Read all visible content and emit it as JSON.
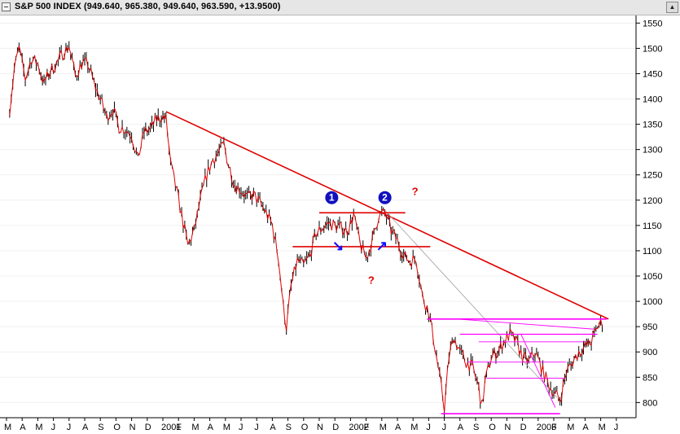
{
  "window": {
    "title": "S&P 500 INDEX (949.640, 965.380, 949.640, 963.590, +13.9500)",
    "scroll_glyph": "▲"
  },
  "chart_data": {
    "type": "candlestick",
    "title": "S&P 500 INDEX (949.640, 965.380, 949.640, 963.590, +13.9500)",
    "ylim": [
      770,
      1565
    ],
    "y_ticks": [
      800,
      850,
      900,
      950,
      1000,
      1050,
      1100,
      1150,
      1200,
      1250,
      1300,
      1350,
      1400,
      1450,
      1500,
      1550
    ],
    "x_ticks": [
      "M",
      "A",
      "M",
      "J",
      "J",
      "A",
      "S",
      "O",
      "N",
      "D",
      "2001",
      "F",
      "M",
      "A",
      "M",
      "J",
      "J",
      "A",
      "S",
      "O",
      "N",
      "D",
      "2002",
      "F",
      "M",
      "A",
      "M",
      "J",
      "J",
      "A",
      "S",
      "O",
      "N",
      "D",
      "2003",
      "F",
      "M",
      "A",
      "M",
      "J"
    ],
    "price_path": [
      [
        0.2,
        1380
      ],
      [
        0.5,
        1460
      ],
      [
        0.8,
        1500
      ],
      [
        1.2,
        1440
      ],
      [
        1.6,
        1480
      ],
      [
        2.0,
        1470
      ],
      [
        2.4,
        1430
      ],
      [
        2.8,
        1455
      ],
      [
        3.2,
        1470
      ],
      [
        3.6,
        1490
      ],
      [
        4.0,
        1505
      ],
      [
        4.4,
        1445
      ],
      [
        4.8,
        1470
      ],
      [
        5.2,
        1470
      ],
      [
        5.6,
        1430
      ],
      [
        6.0,
        1400
      ],
      [
        6.4,
        1365
      ],
      [
        6.8,
        1380
      ],
      [
        7.2,
        1345
      ],
      [
        7.6,
        1340
      ],
      [
        8.0,
        1330
      ],
      [
        8.4,
        1280
      ],
      [
        8.8,
        1335
      ],
      [
        9.2,
        1340
      ],
      [
        9.6,
        1360
      ],
      [
        9.9,
        1365
      ],
      [
        10.2,
        1360
      ],
      [
        10.5,
        1270
      ],
      [
        10.8,
        1230
      ],
      [
        11.2,
        1170
      ],
      [
        11.6,
        1110
      ],
      [
        12.0,
        1140
      ],
      [
        12.4,
        1200
      ],
      [
        12.8,
        1250
      ],
      [
        13.2,
        1280
      ],
      [
        13.6,
        1295
      ],
      [
        13.9,
        1310
      ],
      [
        14.2,
        1270
      ],
      [
        14.6,
        1230
      ],
      [
        15.0,
        1220
      ],
      [
        15.4,
        1205
      ],
      [
        15.8,
        1210
      ],
      [
        16.2,
        1195
      ],
      [
        16.6,
        1175
      ],
      [
        17.0,
        1150
      ],
      [
        17.4,
        1085
      ],
      [
        17.7,
        990
      ],
      [
        17.9,
        950
      ],
      [
        18.2,
        1030
      ],
      [
        18.6,
        1080
      ],
      [
        19.0,
        1070
      ],
      [
        19.4,
        1090
      ],
      [
        19.8,
        1135
      ],
      [
        20.2,
        1145
      ],
      [
        20.6,
        1155
      ],
      [
        21.0,
        1150
      ],
      [
        21.4,
        1145
      ],
      [
        21.8,
        1140
      ],
      [
        22.2,
        1170
      ],
      [
        22.6,
        1115
      ],
      [
        23.0,
        1085
      ],
      [
        23.4,
        1120
      ],
      [
        23.8,
        1170
      ],
      [
        24.2,
        1175
      ],
      [
        24.6,
        1140
      ],
      [
        25.0,
        1120
      ],
      [
        25.4,
        1090
      ],
      [
        25.8,
        1080
      ],
      [
        26.2,
        1085
      ],
      [
        26.6,
        1010
      ],
      [
        27.0,
        980
      ],
      [
        27.4,
        910
      ],
      [
        27.8,
        830
      ],
      [
        28.0,
        790
      ],
      [
        28.3,
        890
      ],
      [
        28.6,
        930
      ],
      [
        29.0,
        900
      ],
      [
        29.4,
        880
      ],
      [
        29.8,
        870
      ],
      [
        30.2,
        830
      ],
      [
        30.4,
        790
      ],
      [
        30.6,
        840
      ],
      [
        31.0,
        890
      ],
      [
        31.4,
        900
      ],
      [
        31.8,
        920
      ],
      [
        32.2,
        935
      ],
      [
        32.6,
        920
      ],
      [
        33.0,
        890
      ],
      [
        33.4,
        880
      ],
      [
        33.8,
        900
      ],
      [
        34.2,
        870
      ],
      [
        34.6,
        840
      ],
      [
        35.0,
        820
      ],
      [
        35.4,
        805
      ],
      [
        35.8,
        860
      ],
      [
        36.2,
        880
      ],
      [
        36.6,
        900
      ],
      [
        37.0,
        910
      ],
      [
        37.4,
        920
      ],
      [
        37.8,
        950
      ],
      [
        38.2,
        963.59
      ]
    ],
    "trendlines": {
      "major_down": [
        [
          10.2,
          1375
        ],
        [
          38.5,
          965
        ]
      ],
      "secondary_down": [
        [
          24.2,
          1180
        ],
        [
          35.2,
          810
        ]
      ],
      "double_top_resistance": [
        [
          20.0,
          1175
        ],
        [
          25.5,
          1175
        ]
      ],
      "neckline_support": [
        [
          18.3,
          1108
        ],
        [
          27.1,
          1108
        ]
      ],
      "resistance_965": [
        [
          26.9,
          965
        ],
        [
          38.4,
          965
        ]
      ],
      "resistance_935": [
        [
          29.0,
          935
        ],
        [
          37.8,
          935
        ]
      ],
      "lower_support": [
        [
          27.8,
          778
        ],
        [
          35.4,
          778
        ]
      ],
      "fan_lines": [
        [
          [
            28.8,
            965
          ],
          [
            37.6,
            945
          ]
        ],
        [
          [
            30.2,
            920
          ],
          [
            37.0,
            920
          ]
        ],
        [
          [
            29.5,
            880
          ],
          [
            35.8,
            880
          ]
        ],
        [
          [
            30.7,
            848
          ],
          [
            35.7,
            848
          ]
        ],
        [
          [
            32.9,
            935
          ],
          [
            35.1,
            790
          ]
        ]
      ]
    },
    "annotations": [
      {
        "label": "1",
        "x": 20.8,
        "y": 1176,
        "kind": "peak-marker"
      },
      {
        "label": "2",
        "x": 24.2,
        "y": 1176,
        "kind": "peak-marker"
      },
      {
        "label": "?",
        "x": 25.5,
        "y": 1175,
        "kind": "question-red"
      },
      {
        "label": "?",
        "x": 22.7,
        "y": 1080,
        "kind": "question-red"
      },
      {
        "label": "↘",
        "x": 21.2,
        "y": 1110,
        "kind": "arrow-blue"
      },
      {
        "label": "↗",
        "x": 24.0,
        "y": 1110,
        "kind": "arrow-blue"
      }
    ]
  }
}
